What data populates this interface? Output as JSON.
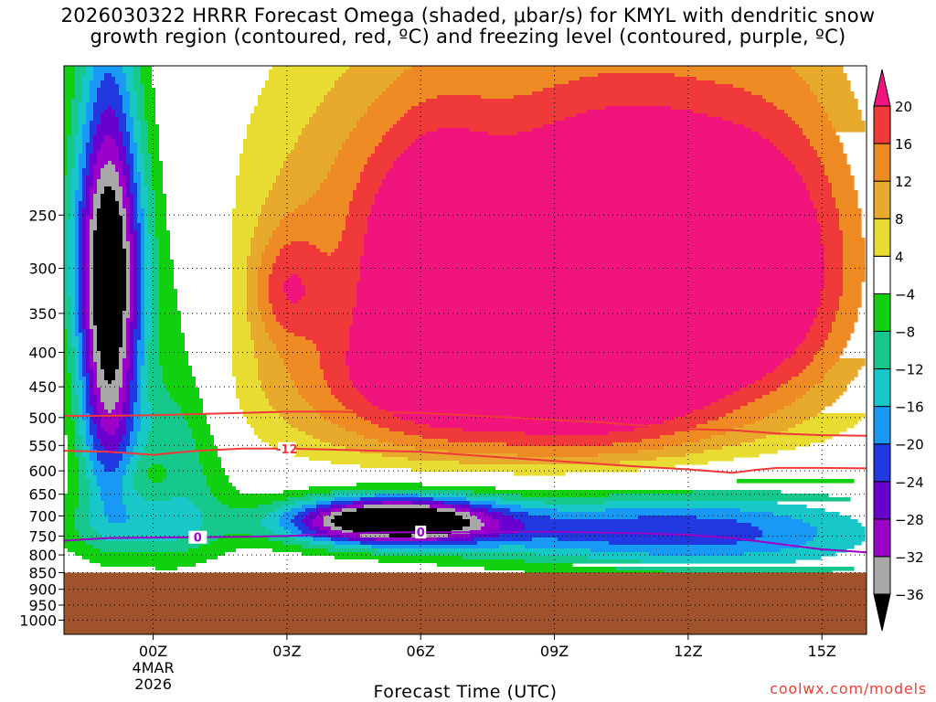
{
  "title_lines": [
    "2026030322 HRRR Forecast Omega (shaded, μbar/s) for KMYL with dendritic snow",
    "growth region (contoured, red, ºC) and freezing level (contoured, purple, ºC)"
  ],
  "credit": "coolwx.com/models",
  "chart_data": {
    "type": "heatmap",
    "title": "2026030322 HRRR Forecast Omega (shaded, μbar/s) for KMYL with dendritic snow growth region (contoured, red, ºC) and freezing level (contoured, purple, ºC)",
    "xlabel": "Forecast Time (UTC)",
    "ylabel": "",
    "x_range_hours": [
      -2,
      16
    ],
    "y_range_mb": [
      1050,
      150
    ],
    "y_scale": "log",
    "x_ticks": [
      {
        "hour": 0,
        "label": "00Z",
        "sublabel": [
          "4MAR",
          "2026"
        ]
      },
      {
        "hour": 3,
        "label": "03Z"
      },
      {
        "hour": 6,
        "label": "06Z"
      },
      {
        "hour": 9,
        "label": "09Z"
      },
      {
        "hour": 12,
        "label": "12Z"
      },
      {
        "hour": 15,
        "label": "15Z"
      }
    ],
    "y_ticks": [
      250,
      300,
      350,
      400,
      450,
      500,
      550,
      600,
      650,
      700,
      750,
      800,
      850,
      900,
      950,
      1000
    ],
    "grid": true,
    "ground_below_mb": 850,
    "colorbar": {
      "levels": [
        -36,
        -32,
        -28,
        -24,
        -20,
        -16,
        -12,
        -8,
        -4,
        4,
        8,
        12,
        16,
        20
      ],
      "labels": [
        "20",
        "16",
        "12",
        "8",
        "4",
        "−4",
        "−8",
        "−12",
        "−16",
        "−20",
        "−24",
        "−28",
        "−32",
        "−36"
      ],
      "colors": [
        "#000000",
        "#a8a8a8",
        "#9a00c8",
        "#6a00d0",
        "#2238e0",
        "#1899f5",
        "#18c8c8",
        "#16c88c",
        "#10d010",
        "#ffffff",
        "#e8dc32",
        "#e8aa2c",
        "#ee8a24",
        "#f03a3a",
        "#f0147c"
      ]
    },
    "contours": [
      {
        "name": "dgz_top",
        "color": "#f03a3a",
        "label": "",
        "points": [
          [
            -2,
            497
          ],
          [
            -1,
            497
          ],
          [
            0,
            496
          ],
          [
            1,
            494
          ],
          [
            2,
            492
          ],
          [
            3,
            490
          ],
          [
            4,
            490
          ],
          [
            5,
            491
          ],
          [
            6,
            492
          ],
          [
            7,
            496
          ],
          [
            8,
            500
          ],
          [
            9,
            504
          ],
          [
            10,
            508
          ],
          [
            11,
            514
          ],
          [
            12,
            520
          ],
          [
            13,
            522
          ],
          [
            14,
            528
          ],
          [
            15,
            531
          ],
          [
            16,
            532
          ]
        ]
      },
      {
        "name": "dgz_bottom",
        "color": "#f03a3a",
        "label": "-12",
        "points": [
          [
            -2,
            560
          ],
          [
            -1,
            562
          ],
          [
            0,
            568
          ],
          [
            0.5,
            564
          ],
          [
            1,
            560
          ],
          [
            2,
            556
          ],
          [
            3,
            556
          ],
          [
            4,
            558
          ],
          [
            5,
            560
          ],
          [
            6,
            562
          ],
          [
            7,
            568
          ],
          [
            8,
            574
          ],
          [
            9,
            580
          ],
          [
            10,
            586
          ],
          [
            11,
            592
          ],
          [
            12,
            597
          ],
          [
            13,
            604
          ],
          [
            13.5,
            598
          ],
          [
            14,
            594
          ],
          [
            15,
            594
          ],
          [
            16,
            595
          ]
        ]
      },
      {
        "name": "freezing_level",
        "color": "#9a00c8",
        "label": "0",
        "points": [
          [
            -2,
            762
          ],
          [
            -1,
            755
          ],
          [
            0,
            754
          ],
          [
            1,
            753
          ],
          [
            2,
            752
          ],
          [
            3,
            750
          ],
          [
            4,
            745
          ],
          [
            5,
            741
          ],
          [
            6,
            740
          ],
          [
            7,
            740
          ],
          [
            8,
            739
          ],
          [
            9,
            739
          ],
          [
            10,
            741
          ],
          [
            11,
            743
          ],
          [
            12,
            747
          ],
          [
            13,
            755
          ],
          [
            14,
            770
          ],
          [
            15,
            785
          ],
          [
            16,
            793
          ]
        ]
      }
    ],
    "omega_cells": [
      {
        "t": 12,
        "p": 340,
        "value": 22,
        "sx": 2.2,
        "sp": 110
      },
      {
        "t": 10,
        "p": 400,
        "value": 16,
        "sx": 2.0,
        "sp": 110
      },
      {
        "t": 6.3,
        "p": 320,
        "value": 16,
        "sx": 1.0,
        "sp": 90
      },
      {
        "t": 8,
        "p": 310,
        "value": 12,
        "sx": 2.5,
        "sp": 130
      },
      {
        "t": 6,
        "p": 420,
        "value": 10,
        "sx": 2.0,
        "sp": 90
      },
      {
        "t": 3,
        "p": 320,
        "value": 12,
        "sx": 0.6,
        "sp": 45
      },
      {
        "t": 11,
        "p": 230,
        "value": 11,
        "sx": 3.0,
        "sp": 80
      },
      {
        "t": 5,
        "p": 440,
        "value": 8,
        "sx": 3.0,
        "sp": 70
      },
      {
        "t": 14.5,
        "p": 300,
        "value": 9,
        "sx": 1.5,
        "sp": 140
      },
      {
        "t": 4.5,
        "p": 230,
        "value": 8,
        "sx": 2.0,
        "sp": 80
      },
      {
        "t": 9,
        "p": 540,
        "value": 6,
        "sx": 4.0,
        "sp": 50
      },
      {
        "t": 5.3,
        "p": 712,
        "value": -44,
        "sx": 1.6,
        "sp": 40
      },
      {
        "t": 10,
        "p": 735,
        "value": -18,
        "sx": 3.5,
        "sp": 60
      },
      {
        "t": 14,
        "p": 760,
        "value": -10,
        "sx": 3.0,
        "sp": 120
      },
      {
        "t": -1,
        "p": 390,
        "value": -36,
        "sx": 0.5,
        "sp": 180
      },
      {
        "t": -1,
        "p": 270,
        "value": -14,
        "sx": 0.7,
        "sp": 80
      },
      {
        "t": 0.5,
        "p": 560,
        "value": -12,
        "sx": 0.8,
        "sp": 160
      },
      {
        "t": -0.5,
        "p": 730,
        "value": -8,
        "sx": 1.5,
        "sp": 60
      },
      {
        "t": 0,
        "p": 610,
        "value": 5,
        "sx": 0.5,
        "sp": 40
      }
    ]
  }
}
